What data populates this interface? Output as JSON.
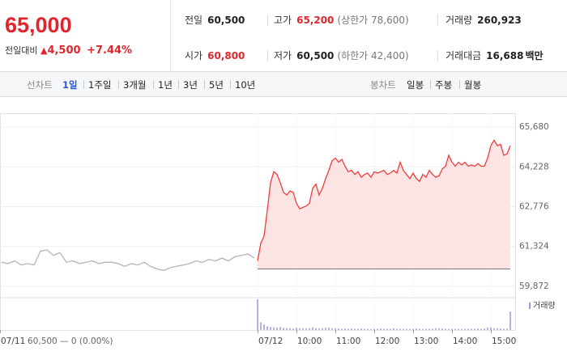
{
  "header": {
    "price": "65,000",
    "change_label": "전일대비",
    "change": "4,500",
    "change_rate": "+7.44%",
    "stats": [
      {
        "label": "전일",
        "value": "60,500"
      },
      {
        "label": "고가",
        "value": "65,200",
        "note": "(상한가 78,600)"
      },
      {
        "label": "거래량",
        "value": "260,923"
      },
      {
        "label": "시가",
        "value": "60,800"
      },
      {
        "label": "저가",
        "value": "60,500",
        "note": "(하한가 42,400)"
      },
      {
        "label": "거래대금",
        "value": "16,688",
        "unit": "백만"
      }
    ]
  },
  "tabs": {
    "line_label": "선차트",
    "line_items": [
      "1일",
      "1주일",
      "3개월",
      "1년",
      "3년",
      "5년",
      "10년"
    ],
    "candle_label": "봉차트",
    "candle_items": [
      "일봉",
      "주봉",
      "월봉"
    ]
  },
  "chart_data": {
    "type": "line",
    "reference_value": 60500,
    "reference_label": "60,500 — 0 (0.00%)",
    "xlim": [
      -397.5,
      397.5
    ],
    "xticks": [
      {
        "value": -397.5,
        "label": "07/11"
      },
      {
        "value": 0,
        "label": "07/12"
      },
      {
        "value": 60,
        "label": "10:00"
      },
      {
        "value": 120,
        "label": "11:00"
      },
      {
        "value": 180,
        "label": "12:00"
      },
      {
        "value": 240,
        "label": "13:00"
      },
      {
        "value": 300,
        "label": "14:00"
      },
      {
        "value": 360,
        "label": "15:00"
      }
    ],
    "ylim": [
      59516,
      66184
    ],
    "yticks": [
      {
        "value": 59872,
        "label": "59,872"
      },
      {
        "value": 61324,
        "label": "61,324"
      },
      {
        "value": 62776,
        "label": "62,776"
      },
      {
        "value": 64228,
        "label": "64,228"
      },
      {
        "value": 65680,
        "label": "65,680"
      }
    ],
    "grid": true,
    "series": [
      {
        "color": "#b4b4b4",
        "x": [
          -395,
          -385,
          -375,
          -365,
          -355,
          -345,
          -335,
          -325,
          -315,
          -305,
          -295,
          -285,
          -275,
          -265,
          -255,
          -245,
          -235,
          -225,
          -215,
          -205,
          -195,
          -185,
          -175,
          -165,
          -155,
          -145,
          -135,
          -125,
          -115,
          -105,
          -95,
          -85,
          -75,
          -65,
          -55,
          -45,
          -35,
          -25,
          -15,
          -5
        ],
        "values": [
          60750,
          60700,
          60800,
          60650,
          60700,
          60650,
          61150,
          61200,
          61000,
          61100,
          60750,
          60800,
          60700,
          60750,
          60800,
          60700,
          60750,
          60750,
          60700,
          60600,
          60700,
          60650,
          60750,
          60600,
          60500,
          60450,
          60550,
          60600,
          60650,
          60700,
          60800,
          60750,
          60850,
          60800,
          60900,
          60800,
          60950,
          61000,
          61050,
          60900
        ]
      },
      {
        "color": "#f03c3c",
        "fill": "#fde4e4",
        "x": [
          0,
          5,
          10,
          15,
          20,
          25,
          30,
          35,
          40,
          45,
          50,
          55,
          60,
          65,
          70,
          75,
          80,
          85,
          90,
          95,
          100,
          105,
          110,
          115,
          120,
          125,
          130,
          135,
          140,
          145,
          150,
          155,
          160,
          165,
          170,
          175,
          180,
          185,
          190,
          195,
          200,
          205,
          210,
          215,
          220,
          225,
          230,
          235,
          240,
          245,
          250,
          255,
          260,
          265,
          270,
          275,
          280,
          285,
          290,
          295,
          300,
          305,
          310,
          315,
          320,
          325,
          330,
          335,
          340,
          345,
          350,
          355,
          360,
          365,
          370,
          375,
          380,
          385,
          390
        ],
        "values": [
          60800,
          61450,
          61700,
          62650,
          63650,
          64050,
          63950,
          63650,
          63300,
          63200,
          63350,
          63300,
          62900,
          62700,
          62750,
          62800,
          62900,
          63450,
          63600,
          63200,
          63450,
          63800,
          64100,
          64450,
          64550,
          64400,
          64500,
          64250,
          64050,
          64100,
          63950,
          64050,
          63850,
          63950,
          64000,
          63850,
          64050,
          64000,
          64050,
          64100,
          63950,
          64000,
          64100,
          64000,
          64400,
          64100,
          63950,
          63800,
          64000,
          63800,
          63700,
          63950,
          63850,
          64100,
          63950,
          63850,
          63900,
          64150,
          64250,
          64650,
          64400,
          64250,
          64400,
          64300,
          64400,
          64250,
          64300,
          64250,
          64350,
          64250,
          64250,
          64550,
          65000,
          65200,
          65000,
          65050,
          64650,
          64700,
          65000
        ]
      }
    ],
    "volume": {
      "name": "거래량",
      "color": "#9a9ad8",
      "ylim": [
        0,
        100
      ],
      "values": [
        100,
        25,
        18,
        12,
        10,
        9,
        8,
        10,
        7,
        6,
        6,
        5,
        7,
        6,
        5,
        5,
        6,
        9,
        6,
        5,
        6,
        7,
        8,
        6,
        5,
        5,
        4,
        5,
        4,
        5,
        4,
        4,
        5,
        4,
        4,
        3,
        4,
        4,
        5,
        4,
        4,
        4,
        6,
        4,
        4,
        4,
        3,
        4,
        4,
        5,
        4,
        3,
        4,
        4,
        4,
        5,
        6,
        5,
        4,
        4,
        4,
        4,
        4,
        3,
        4,
        4,
        4,
        4,
        5,
        4,
        5,
        8,
        9,
        6,
        5,
        5,
        4,
        5,
        60
      ]
    }
  }
}
